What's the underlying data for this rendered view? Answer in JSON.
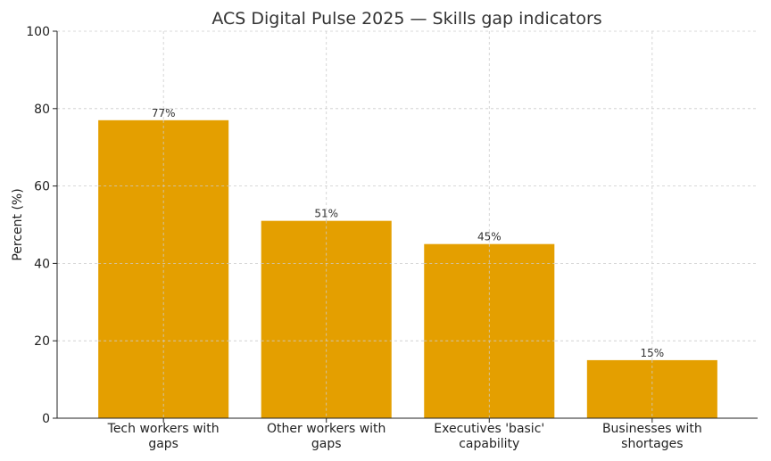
{
  "chart_data": {
    "type": "bar",
    "title": "ACS Digital Pulse 2025 — Skills gap indicators",
    "xlabel": "",
    "ylabel": "Percent (%)",
    "ylim": [
      0,
      100
    ],
    "yticks": [
      0,
      20,
      40,
      60,
      80,
      100
    ],
    "grid": true,
    "categories": [
      [
        "Tech workers with",
        "gaps"
      ],
      [
        "Other workers with",
        "gaps"
      ],
      [
        "Executives 'basic'",
        "capability"
      ],
      [
        "Businesses with",
        "shortages"
      ]
    ],
    "values": [
      77,
      51,
      45,
      15
    ],
    "data_labels": [
      "77%",
      "51%",
      "45%",
      "15%"
    ],
    "bar_color": "#E49F00"
  }
}
